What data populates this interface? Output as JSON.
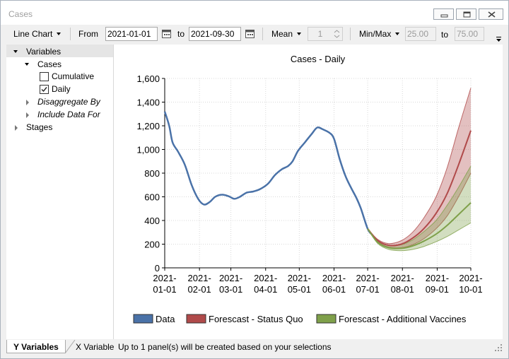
{
  "window": {
    "title": "Cases"
  },
  "toolbar": {
    "chart_type": "Line Chart",
    "from_label": "From",
    "from_value": "2021-01-01",
    "to_label": "to",
    "to_value": "2021-09-30",
    "aggregate": "Mean",
    "stepper_value": "1",
    "range_mode": "Min/Max",
    "min_value": "25.00",
    "range_to_label": "to",
    "max_value": "75.00"
  },
  "tree": {
    "root": "Variables",
    "cases": "Cases",
    "cumulative": "Cumulative",
    "daily": "Daily",
    "disaggregate": "Disaggregate By",
    "include": "Include Data For",
    "stages": "Stages",
    "cumulative_checked": false,
    "daily_checked": true
  },
  "tabs": {
    "y": "Y Variables",
    "x": "X Variable"
  },
  "status": {
    "text": "Up to 1 panel(s) will be created based on your selections"
  },
  "colors": {
    "data": "#4a72a8",
    "status_quo": "#b04a4a",
    "vaccines": "#7fa04a"
  },
  "chart_data": {
    "type": "line",
    "title": "Cases - Daily",
    "ylim": [
      0,
      1600
    ],
    "yticks": [
      0,
      200,
      400,
      600,
      800,
      1000,
      1200,
      1400,
      1600
    ],
    "ytick_labels": [
      "0",
      "200",
      "400",
      "600",
      "800",
      "1,000",
      "1,200",
      "1,400",
      "1,600"
    ],
    "xlim": [
      "2021-01-01",
      "2021-10-01"
    ],
    "xticks": [
      "2021-01-01",
      "2021-02-01",
      "2021-03-01",
      "2021-04-01",
      "2021-05-01",
      "2021-06-01",
      "2021-07-01",
      "2021-08-01",
      "2021-09-01",
      "2021-10-01"
    ],
    "grid": true,
    "legend_position": "bottom",
    "series": [
      {
        "name": "Data",
        "color": "#4a72a8",
        "points": [
          [
            "2021-01-01",
            1320
          ],
          [
            "2021-01-05",
            1200
          ],
          [
            "2021-01-08",
            1060
          ],
          [
            "2021-01-13",
            980
          ],
          [
            "2021-01-19",
            870
          ],
          [
            "2021-01-25",
            700
          ],
          [
            "2021-01-31",
            580
          ],
          [
            "2021-02-05",
            535
          ],
          [
            "2021-02-10",
            555
          ],
          [
            "2021-02-15",
            600
          ],
          [
            "2021-02-21",
            618
          ],
          [
            "2021-02-27",
            605
          ],
          [
            "2021-03-04",
            583
          ],
          [
            "2021-03-09",
            600
          ],
          [
            "2021-03-15",
            635
          ],
          [
            "2021-03-21",
            645
          ],
          [
            "2021-03-27",
            665
          ],
          [
            "2021-04-03",
            710
          ],
          [
            "2021-04-09",
            780
          ],
          [
            "2021-04-15",
            830
          ],
          [
            "2021-04-21",
            860
          ],
          [
            "2021-04-25",
            900
          ],
          [
            "2021-04-30",
            990
          ],
          [
            "2021-05-06",
            1060
          ],
          [
            "2021-05-12",
            1130
          ],
          [
            "2021-05-17",
            1185
          ],
          [
            "2021-05-22",
            1170
          ],
          [
            "2021-05-28",
            1140
          ],
          [
            "2021-06-01",
            1090
          ],
          [
            "2021-06-06",
            920
          ],
          [
            "2021-06-11",
            780
          ],
          [
            "2021-06-16",
            680
          ],
          [
            "2021-06-21",
            590
          ],
          [
            "2021-06-25",
            500
          ],
          [
            "2021-07-01",
            330
          ],
          [
            "2021-07-05",
            280
          ]
        ]
      },
      {
        "name": "Forescast - Status Quo",
        "color": "#b04a4a",
        "points": [
          [
            "2021-07-01",
            330
          ],
          [
            "2021-07-10",
            230
          ],
          [
            "2021-07-20",
            190
          ],
          [
            "2021-07-31",
            200
          ],
          [
            "2021-08-10",
            250
          ],
          [
            "2021-08-20",
            330
          ],
          [
            "2021-08-31",
            460
          ],
          [
            "2021-09-10",
            630
          ],
          [
            "2021-09-20",
            870
          ],
          [
            "2021-10-01",
            1160
          ]
        ],
        "lower": [
          [
            "2021-07-01",
            330
          ],
          [
            "2021-07-10",
            220
          ],
          [
            "2021-07-20",
            175
          ],
          [
            "2021-07-31",
            170
          ],
          [
            "2021-08-10",
            195
          ],
          [
            "2021-08-20",
            245
          ],
          [
            "2021-08-31",
            330
          ],
          [
            "2021-09-10",
            440
          ],
          [
            "2021-09-20",
            600
          ],
          [
            "2021-10-01",
            800
          ]
        ],
        "upper": [
          [
            "2021-07-01",
            330
          ],
          [
            "2021-07-10",
            240
          ],
          [
            "2021-07-20",
            205
          ],
          [
            "2021-07-31",
            230
          ],
          [
            "2021-08-10",
            300
          ],
          [
            "2021-08-20",
            420
          ],
          [
            "2021-08-31",
            600
          ],
          [
            "2021-09-10",
            850
          ],
          [
            "2021-09-20",
            1180
          ],
          [
            "2021-10-01",
            1520
          ]
        ]
      },
      {
        "name": "Forescast - Additional Vaccines",
        "color": "#7fa04a",
        "points": [
          [
            "2021-07-01",
            330
          ],
          [
            "2021-07-10",
            215
          ],
          [
            "2021-07-20",
            170
          ],
          [
            "2021-07-31",
            165
          ],
          [
            "2021-08-10",
            185
          ],
          [
            "2021-08-20",
            225
          ],
          [
            "2021-08-31",
            285
          ],
          [
            "2021-09-10",
            360
          ],
          [
            "2021-09-20",
            450
          ],
          [
            "2021-10-01",
            550
          ]
        ],
        "lower": [
          [
            "2021-07-01",
            330
          ],
          [
            "2021-07-10",
            205
          ],
          [
            "2021-07-20",
            155
          ],
          [
            "2021-07-31",
            145
          ],
          [
            "2021-08-10",
            155
          ],
          [
            "2021-08-20",
            180
          ],
          [
            "2021-08-31",
            220
          ],
          [
            "2021-09-10",
            265
          ],
          [
            "2021-09-20",
            320
          ],
          [
            "2021-10-01",
            380
          ]
        ],
        "upper": [
          [
            "2021-07-01",
            330
          ],
          [
            "2021-07-10",
            225
          ],
          [
            "2021-07-20",
            190
          ],
          [
            "2021-07-31",
            195
          ],
          [
            "2021-08-10",
            235
          ],
          [
            "2021-08-20",
            305
          ],
          [
            "2021-08-31",
            400
          ],
          [
            "2021-09-10",
            530
          ],
          [
            "2021-09-20",
            680
          ],
          [
            "2021-10-01",
            860
          ]
        ]
      }
    ]
  }
}
